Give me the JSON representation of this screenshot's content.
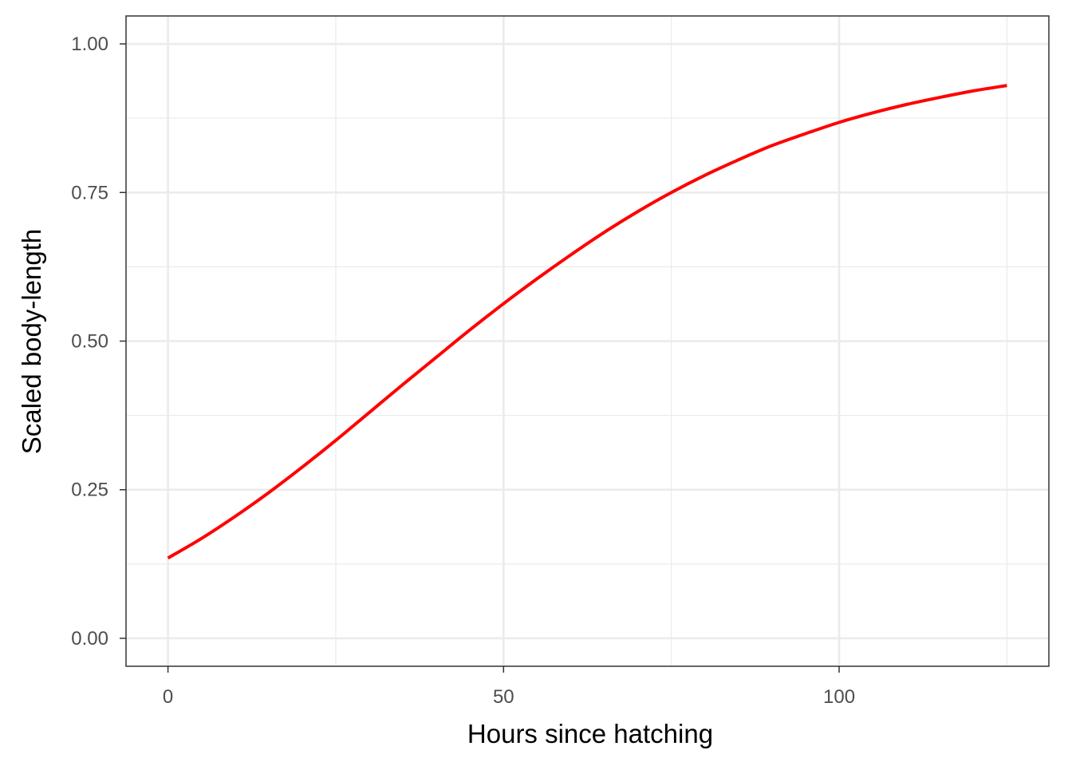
{
  "chart_data": {
    "type": "line",
    "title": "",
    "xlabel": "Hours since hatching",
    "ylabel": "Scaled body-length",
    "xlim": [
      -6.25,
      131.25
    ],
    "ylim": [
      -0.047,
      1.047
    ],
    "x_ticks": [
      0,
      50,
      100
    ],
    "x_tick_labels": [
      "0",
      "50",
      "100"
    ],
    "y_ticks": [
      0,
      0.25,
      0.5,
      0.75,
      1.0
    ],
    "y_tick_labels": [
      "0.00",
      "0.25",
      "0.50",
      "0.75",
      "1.00"
    ],
    "grid": true,
    "legend": "none",
    "series": [
      {
        "color": "#ff0000",
        "x": [
          0,
          5,
          10,
          15,
          20,
          25,
          30,
          35,
          40,
          45,
          50,
          55,
          60,
          65,
          70,
          75,
          80,
          85,
          90,
          95,
          100,
          105,
          110,
          115,
          120,
          125
        ],
        "y": [
          0.135,
          0.168,
          0.205,
          0.245,
          0.288,
          0.333,
          0.38,
          0.427,
          0.473,
          0.519,
          0.563,
          0.605,
          0.645,
          0.683,
          0.718,
          0.75,
          0.779,
          0.805,
          0.829,
          0.849,
          0.868,
          0.884,
          0.898,
          0.91,
          0.921,
          0.93
        ]
      }
    ]
  }
}
